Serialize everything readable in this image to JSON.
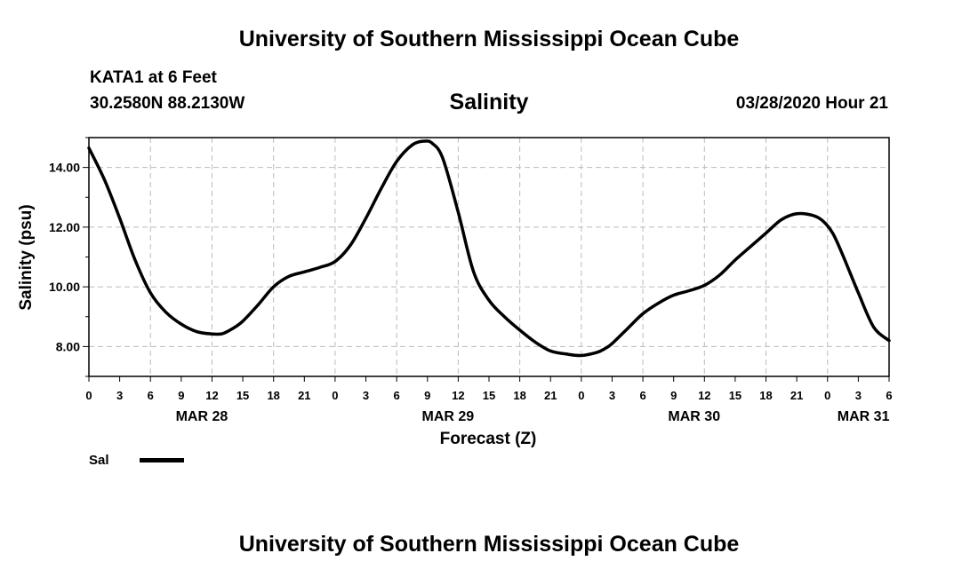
{
  "header": {
    "title": "University of Southern Mississippi Ocean Cube",
    "station": "KATA1 at 6 Feet",
    "coordinates": "30.2580N 88.2130W",
    "variable": "Salinity",
    "datetime": "03/28/2020 Hour 21"
  },
  "footer": {
    "title": "University of Southern Mississippi Ocean Cube"
  },
  "legend": {
    "label": "Sal"
  },
  "chart_data": {
    "type": "line",
    "title": "Salinity",
    "xlabel": "Forecast (Z)",
    "ylabel": "Salinity (psu)",
    "xlim": [
      0,
      78
    ],
    "ylim": [
      7.0,
      15.0
    ],
    "grid": true,
    "x_tick_labels": [
      "0",
      "3",
      "6",
      "9",
      "12",
      "15",
      "18",
      "21",
      "0",
      "3",
      "6",
      "9",
      "12",
      "15",
      "18",
      "21",
      "0",
      "3",
      "6",
      "9",
      "12",
      "15",
      "18",
      "21",
      "0",
      "3",
      "6"
    ],
    "y_ticks": [
      8,
      10,
      12,
      14
    ],
    "y_tick_labels": [
      "8.00",
      "10.00",
      "12.00",
      "14.00"
    ],
    "date_labels": [
      {
        "label": "MAR 28",
        "at_hour": 11
      },
      {
        "label": "MAR 29",
        "at_hour": 35
      },
      {
        "label": "MAR 30",
        "at_hour": 59
      },
      {
        "label": "MAR 31",
        "at_hour": 75.5
      }
    ],
    "series": [
      {
        "name": "Sal",
        "color": "#000000",
        "x": [
          0,
          1.5,
          3,
          4.5,
          6,
          7.5,
          9,
          10.5,
          12,
          13,
          14,
          15,
          16.5,
          18,
          19.5,
          21,
          22.5,
          24,
          25.5,
          27,
          28.5,
          30,
          31.5,
          32.7,
          33.5,
          34.5,
          36,
          37.5,
          39,
          40.5,
          42,
          43.5,
          45,
          46.5,
          48,
          49.5,
          50.3,
          51,
          52.5,
          54,
          55.5,
          57,
          58.5,
          60,
          61.5,
          63,
          64.5,
          66,
          67.5,
          69,
          70.5,
          71.5,
          72.5,
          73.5,
          75,
          76.5,
          78
        ],
        "values": [
          14.65,
          13.6,
          12.3,
          10.9,
          9.8,
          9.15,
          8.75,
          8.5,
          8.42,
          8.43,
          8.6,
          8.85,
          9.4,
          10.0,
          10.35,
          10.5,
          10.65,
          10.85,
          11.4,
          12.3,
          13.3,
          14.2,
          14.75,
          14.88,
          14.8,
          14.3,
          12.5,
          10.5,
          9.55,
          9.0,
          8.55,
          8.15,
          7.85,
          7.75,
          7.7,
          7.8,
          7.93,
          8.1,
          8.6,
          9.1,
          9.45,
          9.72,
          9.87,
          10.05,
          10.4,
          10.9,
          11.35,
          11.8,
          12.25,
          12.45,
          12.4,
          12.22,
          11.8,
          11.05,
          9.8,
          8.65,
          8.2
        ]
      }
    ]
  }
}
